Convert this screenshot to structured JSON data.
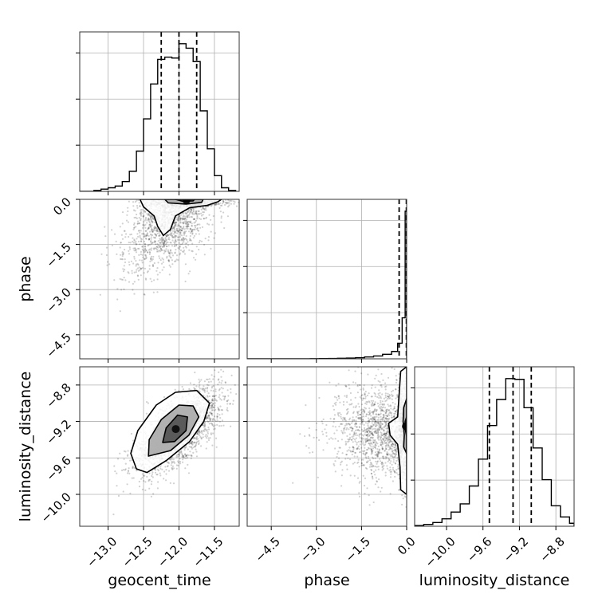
{
  "chart_data": {
    "type": "corner",
    "parameters": [
      "geocent_time",
      "phase",
      "luminosity_distance"
    ],
    "axis_labels": {
      "geocent_time": "geocent_time",
      "phase": "phase",
      "luminosity_distance": "luminosity_distance"
    },
    "ranges": {
      "geocent_time": [
        -13.4,
        -11.15
      ],
      "phase": [
        -5.3,
        0.0
      ],
      "luminosity_distance": [
        -10.35,
        -8.6
      ]
    },
    "ticks": {
      "geocent_time": [
        {
          "v": -13.0,
          "t": "−13.0"
        },
        {
          "v": -12.5,
          "t": "−12.5"
        },
        {
          "v": -12.0,
          "t": "−12.0"
        },
        {
          "v": -11.5,
          "t": "−11.5"
        }
      ],
      "phase": [
        {
          "v": -4.5,
          "t": "−4.5"
        },
        {
          "v": -3.0,
          "t": "−3.0"
        },
        {
          "v": -1.5,
          "t": "−1.5"
        },
        {
          "v": 0.0,
          "t": "0.0"
        }
      ],
      "luminosity_distance": [
        {
          "v": -10.0,
          "t": "−10.0"
        },
        {
          "v": -9.6,
          "t": "−9.6"
        },
        {
          "v": -9.2,
          "t": "−9.2"
        },
        {
          "v": -8.8,
          "t": "−8.8"
        }
      ]
    },
    "quantiles": {
      "geocent_time": [
        -12.25,
        -12.0,
        -11.75
      ],
      "phase": [
        -0.25,
        -0.01
      ],
      "luminosity_distance": [
        -9.53,
        -9.27,
        -9.07
      ]
    },
    "histograms": {
      "geocent_time": {
        "edges": [
          -13.4,
          -13.3,
          -13.2,
          -13.1,
          -13.0,
          -12.9,
          -12.8,
          -12.7,
          -12.6,
          -12.5,
          -12.4,
          -12.3,
          -12.2,
          -12.1,
          -12.0,
          -11.9,
          -11.8,
          -11.7,
          -11.6,
          -11.5,
          -11.4,
          -11.3,
          -11.2
        ],
        "counts": [
          0,
          0,
          2,
          5,
          8,
          12,
          22,
          45,
          90,
          162,
          240,
          295,
          300,
          298,
          330,
          320,
          290,
          180,
          95,
          35,
          8,
          2
        ]
      },
      "phase": {
        "edges": [
          -5.3,
          -5.0,
          -4.7,
          -4.4,
          -4.1,
          -3.8,
          -3.5,
          -3.2,
          -2.9,
          -2.6,
          -2.3,
          -2.0,
          -1.7,
          -1.4,
          -1.1,
          -0.8,
          -0.5,
          -0.3,
          -0.15,
          -0.05,
          0.0
        ],
        "counts": [
          0,
          0,
          0,
          0,
          0,
          1,
          1,
          2,
          3,
          4,
          6,
          9,
          14,
          22,
          35,
          55,
          90,
          190,
          500,
          1800
        ]
      },
      "luminosity_distance": {
        "edges": [
          -10.35,
          -10.25,
          -10.15,
          -10.05,
          -9.95,
          -9.85,
          -9.75,
          -9.65,
          -9.55,
          -9.45,
          -9.35,
          -9.25,
          -9.15,
          -9.05,
          -8.95,
          -8.85,
          -8.75,
          -8.65,
          -8.6
        ],
        "counts": [
          2,
          5,
          10,
          20,
          38,
          60,
          108,
          180,
          270,
          340,
          396,
          394,
          318,
          210,
          125,
          55,
          25,
          8
        ]
      }
    },
    "pairs": [
      {
        "x": "geocent_time",
        "y": "phase",
        "mean": [
          -12.1,
          -0.6
        ],
        "sd": [
          0.33,
          0.9
        ],
        "corr": 0.55,
        "n": 1800,
        "truncate_y_max": 0.0,
        "contours": [
          [
            [
              -12.55,
              0.0
            ],
            [
              -12.5,
              -0.25
            ],
            [
              -12.35,
              -0.55
            ],
            [
              -12.3,
              -0.9
            ],
            [
              -12.22,
              -1.2
            ],
            [
              -12.12,
              -1.0
            ],
            [
              -12.05,
              -0.55
            ],
            [
              -11.85,
              -0.28
            ],
            [
              -11.6,
              -0.2
            ],
            [
              -11.45,
              -0.08
            ],
            [
              -11.4,
              0.0
            ]
          ],
          [
            [
              -12.2,
              0.0
            ],
            [
              -12.15,
              -0.12
            ],
            [
              -11.9,
              -0.16
            ],
            [
              -11.68,
              -0.1
            ],
            [
              -11.66,
              0.0
            ]
          ],
          [
            [
              -12.05,
              0.0
            ],
            [
              -11.95,
              -0.06
            ],
            [
              -11.8,
              -0.05
            ],
            [
              -11.78,
              0.0
            ]
          ]
        ]
      },
      {
        "x": "geocent_time",
        "y": "luminosity_distance",
        "mean": [
          -12.0,
          -9.3
        ],
        "sd": [
          0.3,
          0.23
        ],
        "corr": 0.7,
        "n": 2200,
        "contours": [
          [
            [
              -12.6,
              -9.72
            ],
            [
              -12.68,
              -9.55
            ],
            [
              -12.58,
              -9.3
            ],
            [
              -12.32,
              -9.02
            ],
            [
              -12.05,
              -8.88
            ],
            [
              -11.75,
              -8.86
            ],
            [
              -11.57,
              -9.0
            ],
            [
              -11.65,
              -9.2
            ],
            [
              -11.85,
              -9.42
            ],
            [
              -12.18,
              -9.63
            ],
            [
              -12.45,
              -9.76
            ]
          ],
          [
            [
              -12.43,
              -9.58
            ],
            [
              -12.42,
              -9.4
            ],
            [
              -12.25,
              -9.18
            ],
            [
              -12.0,
              -9.02
            ],
            [
              -11.8,
              -9.03
            ],
            [
              -11.72,
              -9.15
            ],
            [
              -11.86,
              -9.35
            ],
            [
              -12.12,
              -9.52
            ]
          ],
          [
            [
              -12.23,
              -9.43
            ],
            [
              -12.18,
              -9.27
            ],
            [
              -12.02,
              -9.13
            ],
            [
              -11.88,
              -9.15
            ],
            [
              -11.9,
              -9.3
            ],
            [
              -12.06,
              -9.42
            ]
          ]
        ]
      },
      {
        "x": "phase",
        "y": "luminosity_distance",
        "mean": [
          -0.6,
          -9.3
        ],
        "sd": [
          0.9,
          0.26
        ],
        "corr": 0.0,
        "n": 1800,
        "truncate_x_max": 0.0,
        "contours": [
          [
            [
              0.0,
              -8.6
            ],
            [
              -0.2,
              -8.65
            ],
            [
              -0.25,
              -8.9
            ],
            [
              -0.3,
              -9.15
            ],
            [
              -0.6,
              -9.22
            ],
            [
              -0.55,
              -9.35
            ],
            [
              -0.3,
              -9.45
            ],
            [
              -0.22,
              -9.7
            ],
            [
              -0.2,
              -9.95
            ],
            [
              0.0,
              -10.0
            ]
          ],
          [
            [
              0.0,
              -8.95
            ],
            [
              -0.1,
              -9.05
            ],
            [
              -0.12,
              -9.2
            ],
            [
              -0.08,
              -9.35
            ],
            [
              -0.1,
              -9.48
            ],
            [
              0.0,
              -9.55
            ]
          ],
          [
            [
              0.0,
              -9.15
            ],
            [
              -0.05,
              -9.2
            ],
            [
              -0.04,
              -9.3
            ],
            [
              0.0,
              -9.36
            ]
          ]
        ]
      }
    ],
    "grid": true,
    "legend": "none"
  }
}
